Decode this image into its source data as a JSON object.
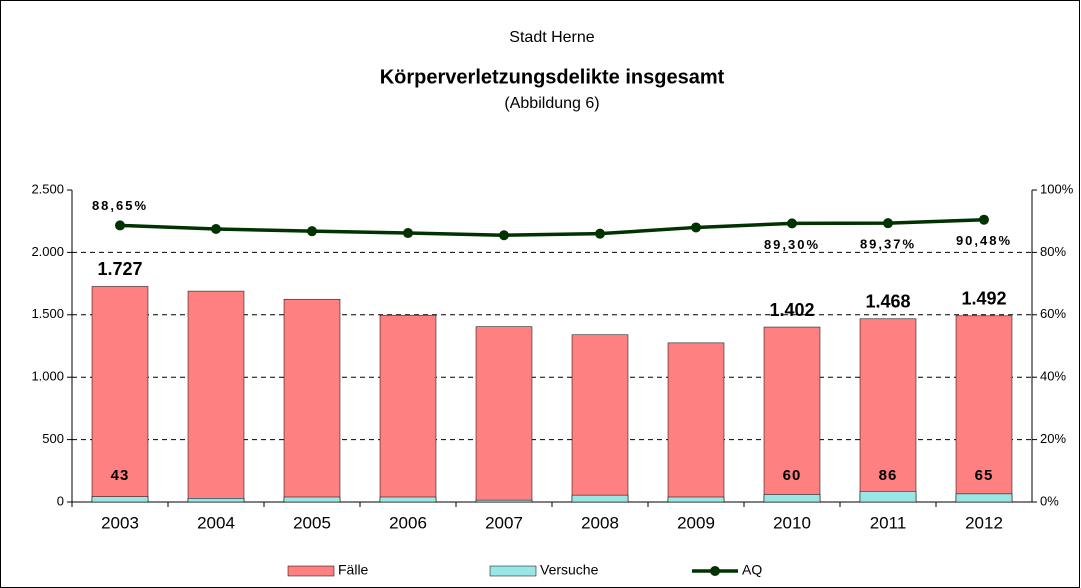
{
  "chart_data": {
    "type": "bar",
    "title": "Körperverletzungsdelikte insgesamt",
    "suptitle": "Stadt Herne",
    "subtitle": "(Abbildung 6)",
    "categories": [
      "2003",
      "2004",
      "2005",
      "2006",
      "2007",
      "2008",
      "2009",
      "2010",
      "2011",
      "2012"
    ],
    "series": [
      {
        "name": "Fälle",
        "color": "#ff8080",
        "values": [
          1727,
          1690,
          1625,
          1497,
          1405,
          1340,
          1275,
          1402,
          1468,
          1492
        ],
        "value_labels": [
          "1.727",
          null,
          null,
          null,
          null,
          null,
          null,
          "1.402",
          "1.468",
          "1.492"
        ]
      },
      {
        "name": "Versuche",
        "color": "#99e6e6",
        "values": [
          43,
          30,
          40,
          40,
          15,
          55,
          40,
          60,
          86,
          65
        ],
        "value_labels": [
          "43",
          null,
          null,
          null,
          null,
          null,
          null,
          "60",
          "86",
          "65"
        ]
      },
      {
        "name": "AQ",
        "color": "#003300",
        "type": "line",
        "axis": "y2",
        "values": [
          88.65,
          87.5,
          86.8,
          86.2,
          85.5,
          86,
          88,
          89.3,
          89.37,
          90.48
        ],
        "value_labels": [
          "88,65%",
          null,
          null,
          null,
          null,
          null,
          null,
          "89,30%",
          "89,37%",
          "90,48%"
        ]
      }
    ],
    "ylim": [
      0,
      2500
    ],
    "yticks": [
      0,
      500,
      {
        "value": 1000,
        "label": "1.000"
      },
      {
        "value": 1500,
        "label": "1.500"
      },
      {
        "value": 2000,
        "label": "2.000"
      },
      {
        "value": 2500,
        "label": "2.500"
      }
    ],
    "y2lim": [
      0,
      100
    ],
    "y2ticks": [
      {
        "value": 0,
        "label": "0%"
      },
      {
        "value": 20,
        "label": "20%"
      },
      {
        "value": 40,
        "label": "40%"
      },
      {
        "value": 60,
        "label": "60%"
      },
      {
        "value": 80,
        "label": "80%"
      },
      {
        "value": 100,
        "label": "100%"
      }
    ],
    "grid": true,
    "legend": "bottom"
  }
}
